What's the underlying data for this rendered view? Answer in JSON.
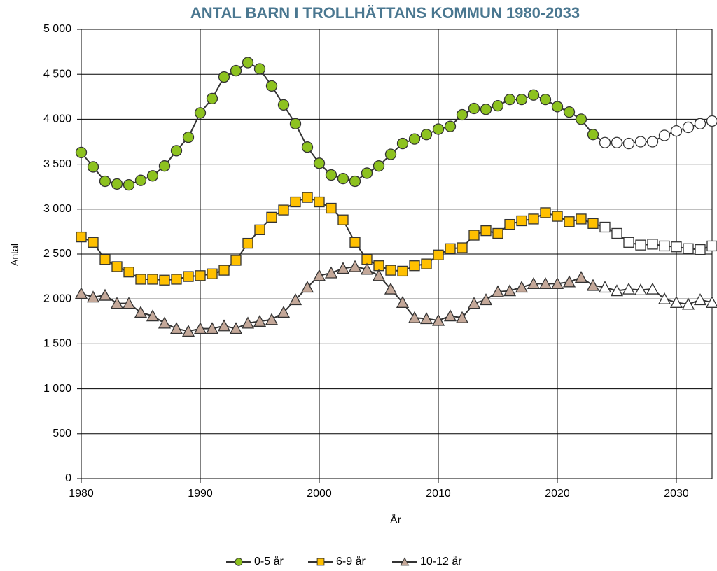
{
  "chart_data": {
    "type": "line",
    "title": "ANTAL BARN I TROLLHÄTTANS KOMMUN 1980-2033",
    "x_label": "År",
    "y_label": "Antal",
    "x": [
      1980,
      1981,
      1982,
      1983,
      1984,
      1985,
      1986,
      1987,
      1988,
      1989,
      1990,
      1991,
      1992,
      1993,
      1994,
      1995,
      1996,
      1997,
      1998,
      1999,
      2000,
      2001,
      2002,
      2003,
      2004,
      2005,
      2006,
      2007,
      2008,
      2009,
      2010,
      2011,
      2012,
      2013,
      2014,
      2015,
      2016,
      2017,
      2018,
      2019,
      2020,
      2021,
      2022,
      2023,
      2024,
      2025,
      2026,
      2027,
      2028,
      2029,
      2030,
      2031,
      2032,
      2033
    ],
    "forecast_from": 2024,
    "forecast_color": "#ffffff",
    "series": [
      {
        "name": "0-5 år",
        "marker": "circle",
        "color": "#8dc21f",
        "values": [
          3630,
          3470,
          3310,
          3280,
          3270,
          3320,
          3370,
          3480,
          3650,
          3800,
          4070,
          4230,
          4470,
          4540,
          4630,
          4560,
          4370,
          4160,
          3950,
          3690,
          3510,
          3380,
          3340,
          3310,
          3400,
          3480,
          3610,
          3730,
          3780,
          3830,
          3890,
          3920,
          4050,
          4120,
          4110,
          4150,
          4220,
          4220,
          4270,
          4220,
          4140,
          4080,
          4000,
          3830,
          3740,
          3740,
          3730,
          3750,
          3750,
          3820,
          3870,
          3910,
          3950,
          3980
        ]
      },
      {
        "name": "6-9 år",
        "marker": "square",
        "color": "#ffc000",
        "values": [
          2690,
          2630,
          2440,
          2360,
          2300,
          2220,
          2220,
          2210,
          2220,
          2250,
          2260,
          2280,
          2320,
          2430,
          2620,
          2770,
          2910,
          2990,
          3080,
          3130,
          3080,
          3010,
          2880,
          2630,
          2440,
          2370,
          2320,
          2310,
          2370,
          2390,
          2490,
          2560,
          2570,
          2710,
          2760,
          2730,
          2830,
          2870,
          2890,
          2960,
          2920,
          2860,
          2890,
          2840,
          2800,
          2730,
          2630,
          2600,
          2610,
          2590,
          2580,
          2560,
          2550,
          2590
        ]
      },
      {
        "name": "10-12 år",
        "marker": "triangle",
        "color": "#c4a899",
        "values": [
          2060,
          2020,
          2040,
          1950,
          1950,
          1850,
          1810,
          1730,
          1670,
          1640,
          1670,
          1670,
          1700,
          1670,
          1730,
          1750,
          1770,
          1850,
          1990,
          2130,
          2260,
          2290,
          2340,
          2360,
          2330,
          2260,
          2110,
          1960,
          1790,
          1780,
          1760,
          1810,
          1790,
          1950,
          1990,
          2080,
          2090,
          2130,
          2170,
          2170,
          2170,
          2190,
          2240,
          2150,
          2130,
          2090,
          2110,
          2100,
          2110,
          2000,
          1960,
          1940,
          1990,
          1960
        ]
      }
    ],
    "xlim": [
      1980,
      2033
    ],
    "xticks": [
      1980,
      1990,
      2000,
      2010,
      2020,
      2030
    ],
    "ylim": [
      0,
      5000
    ],
    "yticks": [
      0,
      500,
      {
        "value": 1000,
        "label": "1 000"
      },
      {
        "value": 1500,
        "label": "1 500"
      },
      {
        "value": 2000,
        "label": "2 000"
      },
      {
        "value": 2500,
        "label": "2 500"
      },
      {
        "value": 3000,
        "label": "3 000"
      },
      {
        "value": 3500,
        "label": "3 500"
      },
      {
        "value": 4000,
        "label": "4 000"
      },
      {
        "value": 4500,
        "label": "4 500"
      },
      {
        "value": 5000,
        "label": "5 000"
      }
    ],
    "grid": true,
    "legend": "bottom",
    "line_color": "#333333"
  }
}
